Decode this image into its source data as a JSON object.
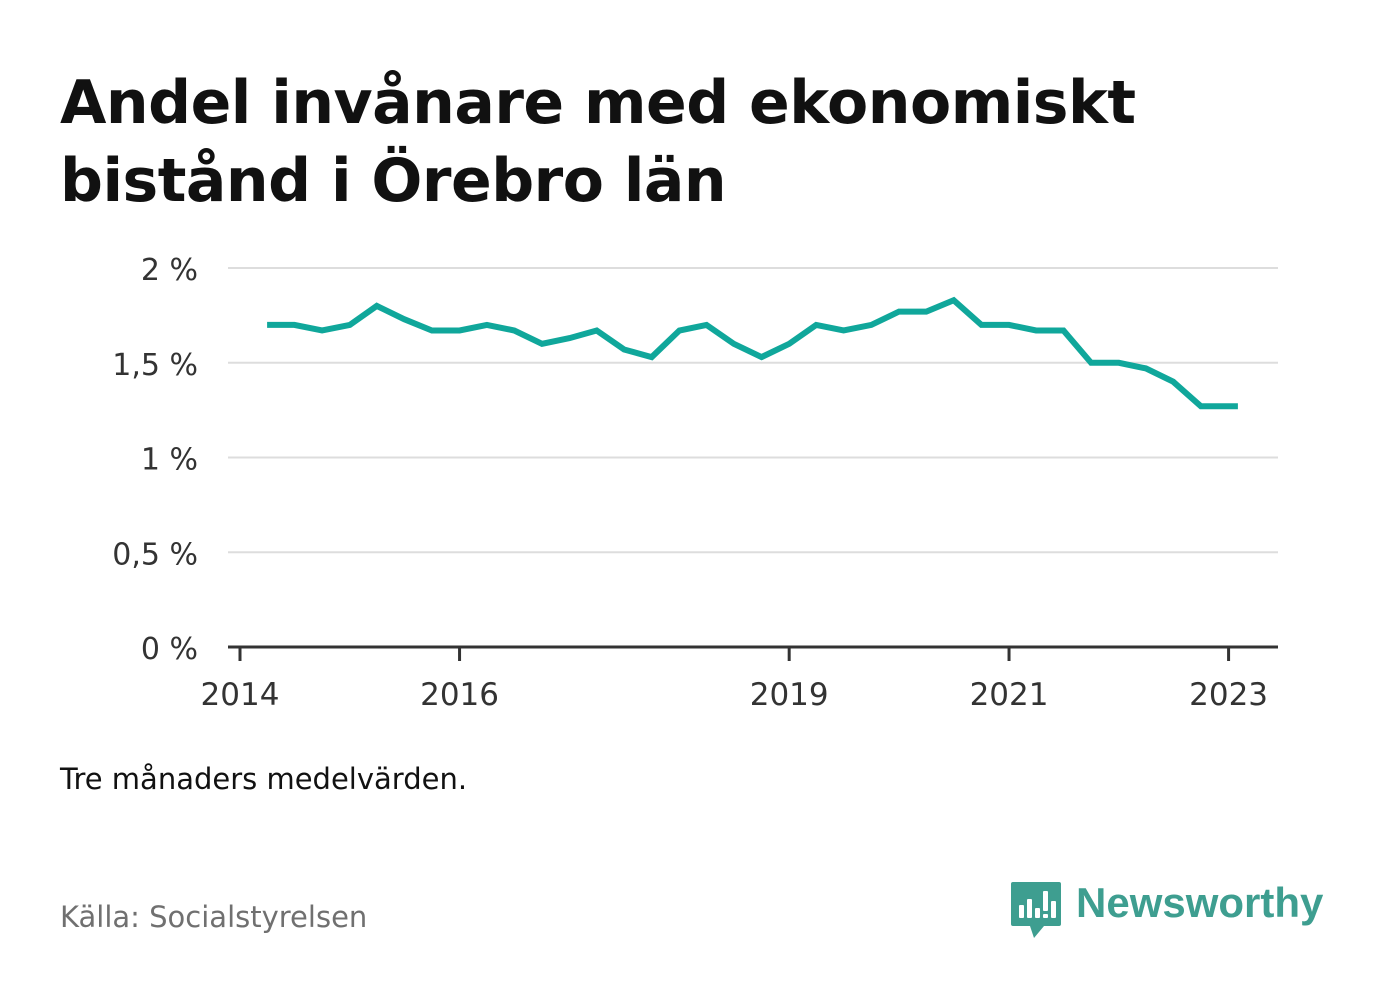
{
  "header": {
    "title": "Andel invånare med ekonomiskt bistånd i Örebro län"
  },
  "footer": {
    "note": "Tre månaders medelvärden.",
    "source": "Källa: Socialstyrelsen",
    "brand": "Newsworthy",
    "logo_icon": "bar-chart-speech-bubble-icon"
  },
  "colors": {
    "line": "#10a79b",
    "grid": "#dddddd",
    "axis": "#333333",
    "brand": "#3e9e90"
  },
  "chart_data": {
    "type": "line",
    "title": "Andel invånare med ekonomiskt bistånd i Örebro län",
    "xlabel": "",
    "ylabel": "",
    "ylim": [
      0,
      2
    ],
    "yticks": [
      {
        "value": 0,
        "label": "0 %"
      },
      {
        "value": 0.5,
        "label": "0,5 %"
      },
      {
        "value": 1,
        "label": "1 %"
      },
      {
        "value": 1.5,
        "label": "1,5 %"
      },
      {
        "value": 2,
        "label": "2 %"
      }
    ],
    "xlim": [
      "2014-01-01",
      "2023-06-01"
    ],
    "xticks": [
      {
        "date": "2014-01-01",
        "label": "2014"
      },
      {
        "date": "2016-01-01",
        "label": "2016"
      },
      {
        "date": "2019-01-01",
        "label": "2019"
      },
      {
        "date": "2021-01-01",
        "label": "2021"
      },
      {
        "date": "2023-01-01",
        "label": "2023"
      }
    ],
    "grid": true,
    "series": [
      {
        "name": "",
        "color": "#10a79b",
        "points": [
          {
            "x": "2014-04-01",
            "y": 1.7
          },
          {
            "x": "2014-07-01",
            "y": 1.7
          },
          {
            "x": "2014-10-01",
            "y": 1.67
          },
          {
            "x": "2015-01-01",
            "y": 1.7
          },
          {
            "x": "2015-04-01",
            "y": 1.8
          },
          {
            "x": "2015-07-01",
            "y": 1.73
          },
          {
            "x": "2015-10-01",
            "y": 1.67
          },
          {
            "x": "2016-01-01",
            "y": 1.67
          },
          {
            "x": "2016-04-01",
            "y": 1.7
          },
          {
            "x": "2016-07-01",
            "y": 1.67
          },
          {
            "x": "2016-10-01",
            "y": 1.6
          },
          {
            "x": "2017-01-01",
            "y": 1.63
          },
          {
            "x": "2017-04-01",
            "y": 1.67
          },
          {
            "x": "2017-07-01",
            "y": 1.57
          },
          {
            "x": "2017-10-01",
            "y": 1.53
          },
          {
            "x": "2018-01-01",
            "y": 1.67
          },
          {
            "x": "2018-04-01",
            "y": 1.7
          },
          {
            "x": "2018-07-01",
            "y": 1.6
          },
          {
            "x": "2018-10-01",
            "y": 1.53
          },
          {
            "x": "2019-01-01",
            "y": 1.6
          },
          {
            "x": "2019-04-01",
            "y": 1.7
          },
          {
            "x": "2019-07-01",
            "y": 1.67
          },
          {
            "x": "2019-10-01",
            "y": 1.7
          },
          {
            "x": "2020-01-01",
            "y": 1.77
          },
          {
            "x": "2020-04-01",
            "y": 1.77
          },
          {
            "x": "2020-07-01",
            "y": 1.83
          },
          {
            "x": "2020-10-01",
            "y": 1.7
          },
          {
            "x": "2021-01-01",
            "y": 1.7
          },
          {
            "x": "2021-04-01",
            "y": 1.67
          },
          {
            "x": "2021-07-01",
            "y": 1.67
          },
          {
            "x": "2021-10-01",
            "y": 1.5
          },
          {
            "x": "2022-01-01",
            "y": 1.5
          },
          {
            "x": "2022-04-01",
            "y": 1.47
          },
          {
            "x": "2022-07-01",
            "y": 1.4
          },
          {
            "x": "2022-10-01",
            "y": 1.27
          },
          {
            "x": "2023-01-01",
            "y": 1.27
          },
          {
            "x": "2023-02-01",
            "y": 1.27
          }
        ]
      }
    ]
  }
}
